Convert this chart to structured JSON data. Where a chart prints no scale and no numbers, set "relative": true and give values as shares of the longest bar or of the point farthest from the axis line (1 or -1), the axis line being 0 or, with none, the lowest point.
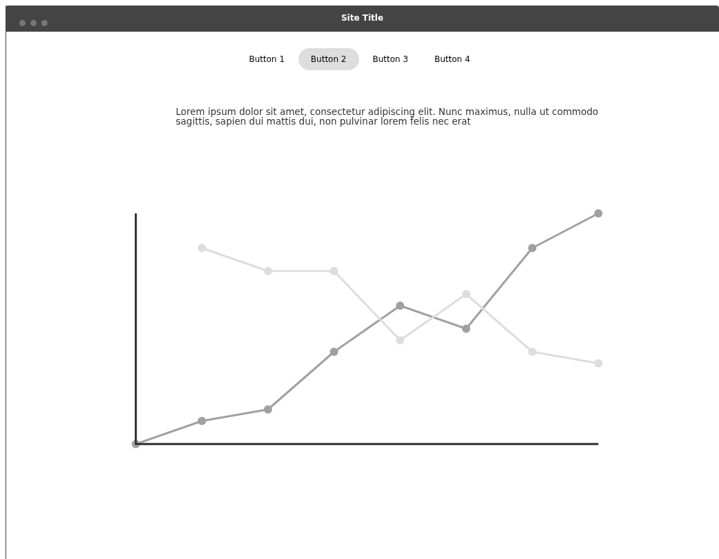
{
  "chart_data": {
    "type": "line",
    "relative": true,
    "subtitle": "Lorem ipsum dolor sit amet, consectetur adipiscing elit. Nunc maximus, nulla ut commodo sagittis, sapien dui mattis dui, non pulvinar lorem felis nec erat",
    "annotations": [
      "Site Title",
      "Button 1",
      "Button 2",
      "Button 3",
      "Button 4"
    ],
    "categories": [
      null,
      null,
      null,
      null,
      null,
      null,
      null,
      null
    ],
    "series": [
      {
        "color": "#dddddd",
        "values": [
          null,
          0.85,
          0.75,
          0.75,
          0.45,
          0.65,
          0.4,
          0.35
        ]
      },
      {
        "color": "#a0a0a0",
        "values": [
          0,
          0.1,
          0.15,
          0.4,
          0.6,
          0.5,
          0.85,
          1
        ]
      }
    ],
    "marker": "circle",
    "grid": false,
    "legend": false
  }
}
